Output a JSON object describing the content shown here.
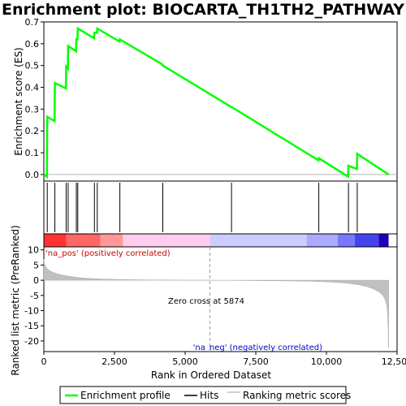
{
  "chart_data": {
    "type": "line",
    "title": "Enrichment plot: BIOCARTA_TH1TH2_PATHWAY",
    "top_panel": {
      "ylabel": "Enrichment score (ES)",
      "ylim": [
        -0.03,
        0.7
      ],
      "yticks": [
        "0.0",
        "0.1",
        "0.2",
        "0.3",
        "0.4",
        "0.5",
        "0.6",
        "0.7"
      ],
      "ytick_values": [
        0.0,
        0.1,
        0.2,
        0.3,
        0.4,
        0.5,
        0.6,
        0.7
      ],
      "series": [
        {
          "name": "Enrichment profile",
          "color": "#00ff00",
          "x": [
            0,
            110,
            120,
            380,
            390,
            780,
            790,
            850,
            860,
            1140,
            1150,
            1190,
            1200,
            1780,
            1790,
            1880,
            1890,
            2680,
            2690,
            4200,
            4210,
            6630,
            6640,
            9720,
            9730,
            10770,
            10780,
            11080,
            11090,
            12200
          ],
          "y": [
            0.0,
            -0.01,
            0.265,
            0.245,
            0.42,
            0.395,
            0.495,
            0.485,
            0.59,
            0.565,
            0.62,
            0.62,
            0.67,
            0.625,
            0.65,
            0.65,
            0.67,
            0.61,
            0.62,
            0.505,
            0.5,
            0.31,
            0.31,
            0.065,
            0.075,
            -0.01,
            0.04,
            0.025,
            0.095,
            0.0
          ]
        }
      ]
    },
    "hits": {
      "name": "Hits",
      "color": "#000000",
      "x": [
        120,
        390,
        790,
        860,
        1150,
        1200,
        1790,
        1890,
        2690,
        4210,
        6640,
        9730,
        10780,
        11090
      ]
    },
    "color_bar": {
      "segments": [
        {
          "from": 0,
          "to": 800,
          "color": "#ff3333"
        },
        {
          "from": 800,
          "to": 2000,
          "color": "#ff6666"
        },
        {
          "from": 2000,
          "to": 2800,
          "color": "#ff9999"
        },
        {
          "from": 2800,
          "to": 5874,
          "color": "#ffccee"
        },
        {
          "from": 5874,
          "to": 9300,
          "color": "#ccccff"
        },
        {
          "from": 9300,
          "to": 10400,
          "color": "#aaaaff"
        },
        {
          "from": 10400,
          "to": 11000,
          "color": "#7777ff"
        },
        {
          "from": 11000,
          "to": 11850,
          "color": "#4444ee"
        },
        {
          "from": 11850,
          "to": 12200,
          "color": "#2200bb"
        }
      ]
    },
    "bottom_panel": {
      "ylabel": "Ranked list metric (PreRanked)",
      "xlabel": "Rank in Ordered Dataset",
      "xlim": [
        0,
        12500
      ],
      "ylim": [
        -23.5,
        11
      ],
      "xticks": [
        "0",
        "2,500",
        "5,000",
        "7,500",
        "10,000",
        "12,500"
      ],
      "xtick_values": [
        0,
        2500,
        5000,
        7500,
        10000,
        12500
      ],
      "yticks": [
        "10",
        "5",
        "0",
        "-5",
        "-10",
        "-15",
        "-20"
      ],
      "ytick_values": [
        10,
        5,
        0,
        -5,
        -10,
        -15,
        -20
      ],
      "series": [
        {
          "name": "Ranking metric scores",
          "color": "#c0c0c0",
          "x": [
            0,
            20,
            60,
            120,
            200,
            300,
            450,
            650,
            900,
            1200,
            1600,
            2200,
            3000,
            4000,
            5000,
            5874,
            7000,
            8500,
            9500,
            10200,
            10700,
            11100,
            11400,
            11650,
            11850,
            12000,
            12080,
            12130,
            12160,
            12180,
            12200
          ],
          "y": [
            7.0,
            5.5,
            4.5,
            3.8,
            3.2,
            2.7,
            2.2,
            1.7,
            1.3,
            0.9,
            0.6,
            0.35,
            0.2,
            0.1,
            0.03,
            0.0,
            -0.08,
            -0.2,
            -0.35,
            -0.6,
            -0.95,
            -1.4,
            -2.0,
            -2.8,
            -3.8,
            -5.0,
            -6.5,
            -8.0,
            -10.5,
            -15.0,
            -22.5
          ]
        }
      ],
      "annotations": {
        "pos_label": "'na_pos' (positively correlated)",
        "neg_label": "'na_neg' (negatively correlated)",
        "zero_cross": "Zero cross at 5874",
        "zero_cross_x": 5874,
        "pos_color": "#cc0000",
        "neg_color": "#0000cc"
      }
    },
    "legend": {
      "items": [
        "Enrichment profile",
        "Hits",
        "Ranking metric scores"
      ],
      "colors": [
        "#00ff00",
        "#000000",
        "#c0c0c0"
      ],
      "placement": "bottom"
    }
  }
}
